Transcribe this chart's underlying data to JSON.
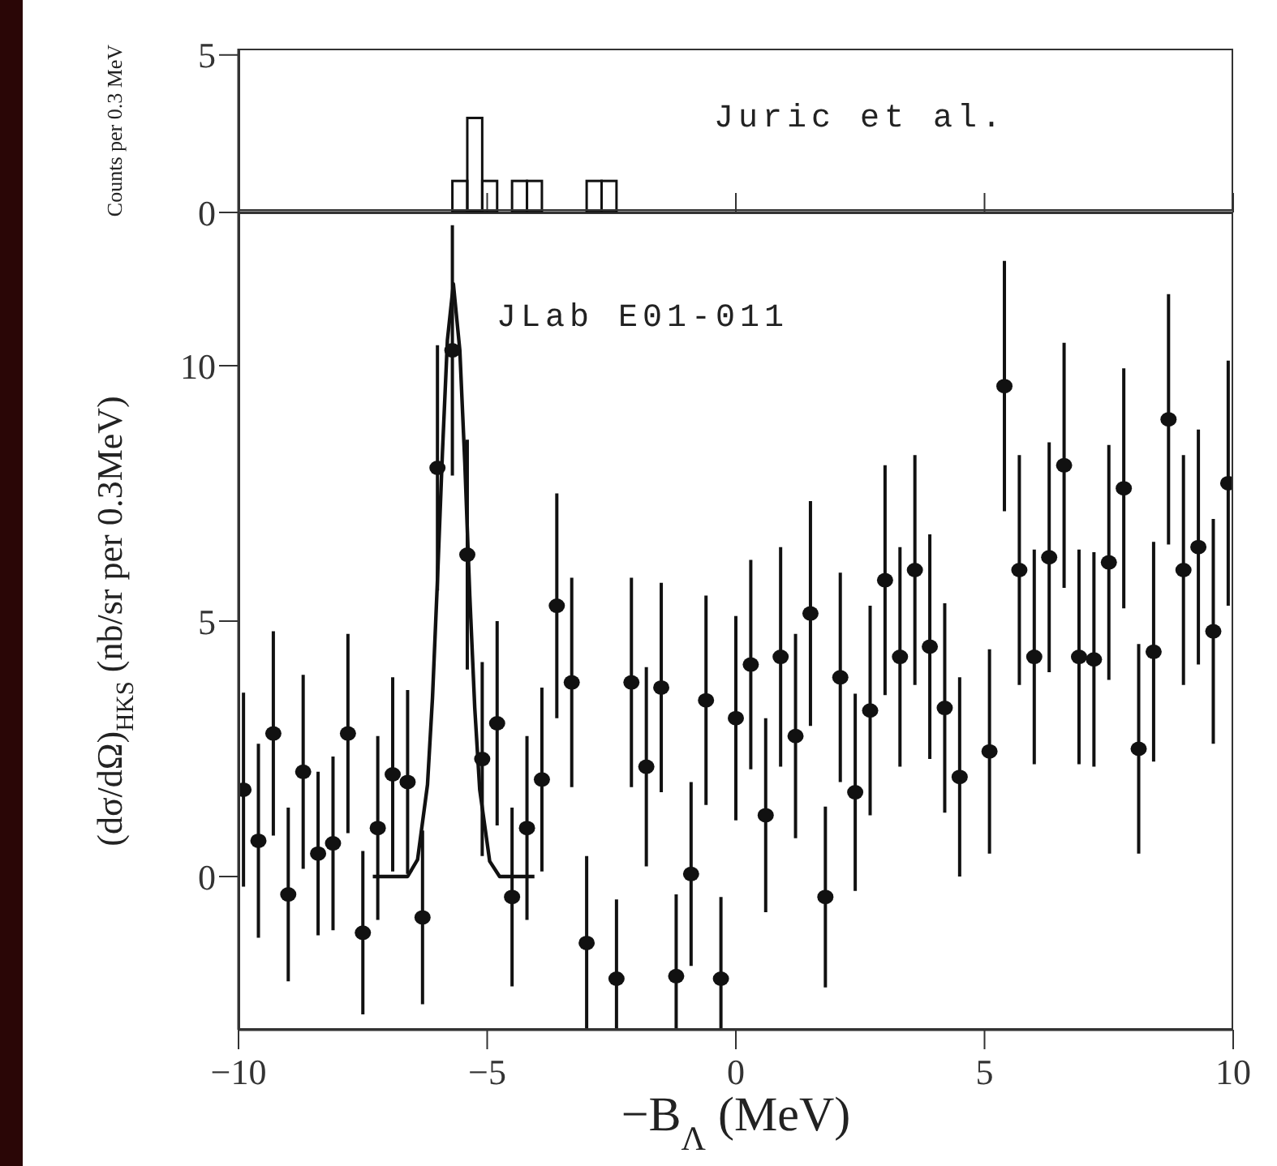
{
  "chart_data": [
    {
      "type": "histogram",
      "ylabel": "Counts per 0.3 MeV",
      "annotations": [
        "Juric et al."
      ],
      "bins": [
        -5.7,
        -5.4,
        -5.1,
        -4.8,
        -4.5,
        -4.2,
        -3.9,
        -3.6,
        -3.3,
        -3.0,
        -2.7,
        -2.4
      ],
      "values": [
        1,
        3,
        1,
        0,
        1,
        1,
        0,
        0,
        0,
        1,
        1
      ],
      "color": "#111111",
      "xlim": [
        -10,
        10
      ],
      "xticks": [
        {
          "value": -10,
          "label": null
        },
        {
          "value": -5,
          "label": null
        },
        {
          "value": 0,
          "label": null
        },
        {
          "value": 5,
          "label": null
        },
        {
          "value": 10,
          "label": null
        }
      ],
      "ylim": [
        0,
        5.2
      ],
      "yticks": [
        0,
        5
      ],
      "tick_labels": "y",
      "grid": false,
      "legend": false
    },
    {
      "type": "scatter",
      "xlabel": "−B$_{Λ}$ (MeV)",
      "ylabel": "(dσ/dΩ)$_{HKS}$ (nb/sr per 0.3MeV)",
      "annotations": [
        "JLab E01-011"
      ],
      "series": [
        {
          "type": "scatter",
          "color": "#111111",
          "marker": "circle",
          "x": [
            -9.9,
            -9.6,
            -9.3,
            -9.0,
            -8.7,
            -8.4,
            -8.1,
            -7.8,
            -7.5,
            -7.2,
            -6.9,
            -6.6,
            -6.3,
            -6.0,
            -5.7,
            -5.4,
            -5.1,
            -4.8,
            -4.5,
            -4.2,
            -3.9,
            -3.6,
            -3.3,
            -3.0,
            -2.4,
            -2.1,
            -1.8,
            -1.5,
            -1.2,
            -0.9,
            -0.6,
            -0.3,
            0.0,
            0.3,
            0.6,
            0.9,
            1.2,
            1.5,
            1.8,
            2.1,
            2.4,
            2.7,
            3.0,
            3.3,
            3.6,
            3.9,
            4.2,
            4.5,
            5.1,
            5.4,
            5.7,
            6.0,
            6.3,
            6.6,
            6.9,
            7.2,
            7.5,
            7.8,
            8.1,
            8.4,
            8.7,
            9.0,
            9.3,
            9.6,
            9.9
          ],
          "values": [
            1.7,
            0.7,
            2.8,
            -0.35,
            2.05,
            0.45,
            0.65,
            2.8,
            -1.1,
            0.95,
            2.0,
            1.85,
            -0.8,
            8.0,
            10.3,
            6.3,
            2.3,
            3.0,
            -0.4,
            0.95,
            1.9,
            5.3,
            3.8,
            -1.3,
            -2.0,
            3.8,
            2.15,
            3.7,
            -1.95,
            0.05,
            3.45,
            -2.0,
            3.1,
            4.15,
            1.2,
            4.3,
            2.75,
            5.15,
            -0.4,
            3.9,
            1.65,
            3.25,
            5.8,
            4.3,
            6.0,
            4.5,
            3.3,
            1.95,
            2.45,
            9.6,
            6.0,
            4.3,
            6.25,
            8.05,
            4.3,
            4.25,
            6.15,
            7.6,
            2.5,
            4.4,
            8.95,
            6.0,
            6.45,
            4.8,
            7.7
          ],
          "errors": [
            1.9,
            1.9,
            2.0,
            1.7,
            1.9,
            1.6,
            1.7,
            1.95,
            1.6,
            1.8,
            1.9,
            1.8,
            1.7,
            2.4,
            2.45,
            2.25,
            1.9,
            2.0,
            1.75,
            1.8,
            1.8,
            2.2,
            2.05,
            1.7,
            [
              -3.0,
              -0.45
            ],
            2.05,
            1.95,
            2.05,
            [
              -3.0,
              -0.35
            ],
            1.8,
            2.05,
            [
              -3.0,
              -0.4
            ],
            2.0,
            2.05,
            1.9,
            2.15,
            2.0,
            2.2,
            1.77,
            2.05,
            1.93,
            2.05,
            2.25,
            2.15,
            2.25,
            2.2,
            2.05,
            1.95,
            2.0,
            2.45,
            2.25,
            2.1,
            2.25,
            2.4,
            2.1,
            2.1,
            2.3,
            2.35,
            2.05,
            2.15,
            2.45,
            2.25,
            2.3,
            2.2,
            2.4
          ]
        },
        {
          "type": "line",
          "color": "#111111",
          "line_style": "solid",
          "x": [
            -7.3,
            -6.6,
            -6.4,
            -6.2,
            -6.1,
            -6.0,
            -5.9,
            -5.8,
            -5.68,
            -5.55,
            -5.45,
            -5.35,
            -5.25,
            -5.15,
            -4.95,
            -4.75,
            -4.05
          ],
          "values": [
            0,
            0,
            0.33,
            1.8,
            3.5,
            5.8,
            8.3,
            10.5,
            11.6,
            10.3,
            8.1,
            5.5,
            3.3,
            1.7,
            0.3,
            0,
            0
          ]
        }
      ],
      "xlim": [
        -10,
        10
      ],
      "xticks": [
        -10,
        -5,
        0,
        5,
        10
      ],
      "ylim": [
        -3,
        13
      ],
      "yticks": [
        0,
        5,
        10
      ],
      "grid": false,
      "legend": false
    }
  ]
}
